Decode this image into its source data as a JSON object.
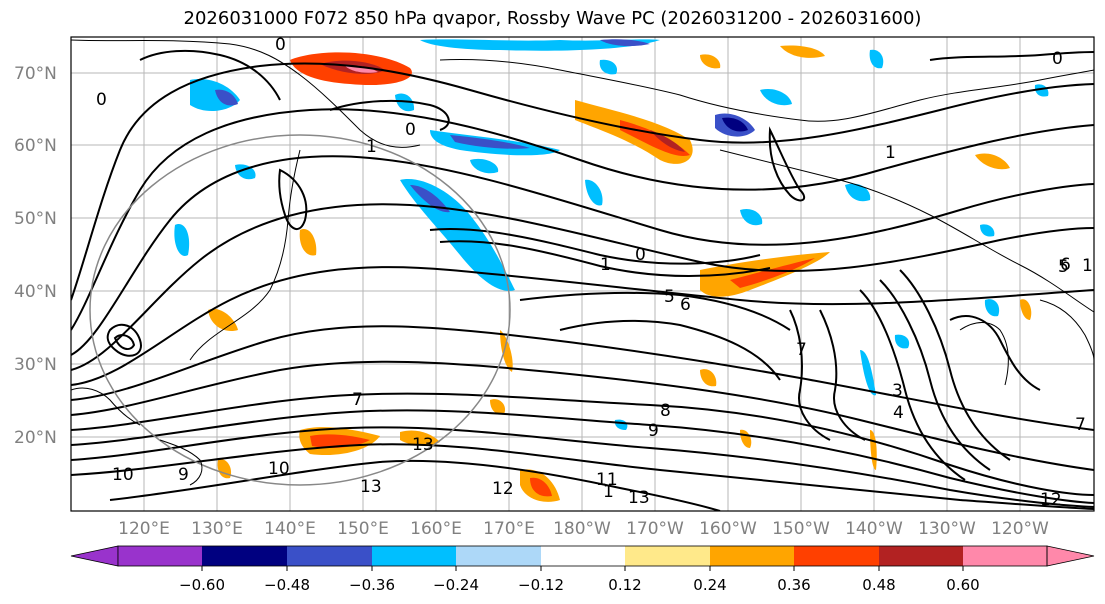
{
  "title": "2026031000 F072 850 hPa qvapor, Rossby Wave PC (2026031200 - 2026031600)",
  "lat_labels": [
    "70°N",
    "60°N",
    "50°N",
    "40°N",
    "30°N",
    "20°N"
  ],
  "lon_labels": [
    "120°E",
    "130°E",
    "140°E",
    "150°E",
    "160°E",
    "170°E",
    "180°W",
    "170°W",
    "160°W",
    "150°W",
    "140°W",
    "130°W",
    "120°W"
  ],
  "contour_labels": [
    "0",
    "0",
    "0",
    "0",
    "0",
    "1",
    "1",
    "1",
    "1",
    "1",
    "3",
    "4",
    "5",
    "6",
    "6",
    "7",
    "7",
    "7",
    "8",
    "9",
    "10",
    "10",
    "13",
    "13",
    "13",
    "12",
    "12",
    "11",
    "9",
    "5"
  ],
  "colorbar": {
    "colors": [
      "#9933cc",
      "#000080",
      "#3a50c8",
      "#00bfff",
      "#add8f8",
      "#ffffff",
      "#ffe98a",
      "#ffa500",
      "#ff4000",
      "#b22222",
      "#ff88aa"
    ],
    "tick_labels": [
      "−0.60",
      "−0.48",
      "−0.36",
      "−0.24",
      "−0.12",
      "0.12",
      "0.24",
      "0.36",
      "0.48",
      "0.60"
    ]
  }
}
